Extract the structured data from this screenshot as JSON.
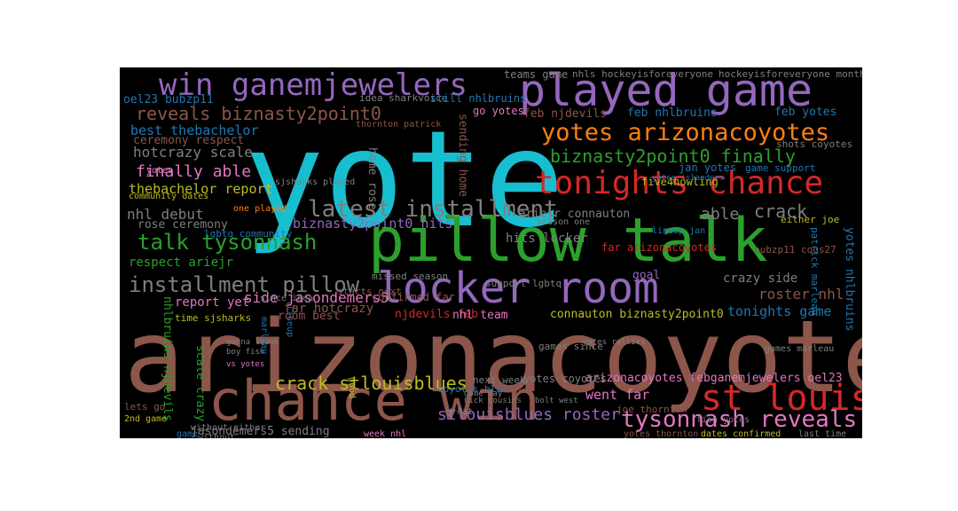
{
  "colors": {
    "cyan": "#17becf",
    "brown": "#8c564b",
    "green": "#2ca02c",
    "purple": "#9467bd",
    "red": "#d62728",
    "orange": "#ff7f0e",
    "pink": "#e377c2",
    "gray": "#7f7f7f",
    "olive": "#bcbd22",
    "blue": "#1f77b4"
  },
  "words": [
    {
      "text": "yote",
      "color": "cyan"
    },
    {
      "text": "arizonacoyotes",
      "color": "brown"
    },
    {
      "text": "pillow talk",
      "color": "green"
    },
    {
      "text": "chance win",
      "color": "brown"
    },
    {
      "text": "played game",
      "color": "purple"
    },
    {
      "text": "locker room",
      "color": "purple"
    },
    {
      "text": "win ganemjewelers",
      "color": "purple"
    },
    {
      "text": "tonights chance",
      "color": "red"
    },
    {
      "text": "yotes arizonacoyotes",
      "color": "orange"
    },
    {
      "text": "st louis",
      "color": "red"
    },
    {
      "text": "latest installment",
      "color": "gray"
    },
    {
      "text": "installment pillow",
      "color": "gray"
    },
    {
      "text": "tysonnash reveals",
      "color": "pink"
    },
    {
      "text": "talk tysonnash",
      "color": "green"
    },
    {
      "text": "reveals biznasty2point0",
      "color": "brown"
    },
    {
      "text": "biznasty2point0 finally",
      "color": "green"
    },
    {
      "text": "crack stlouisblues",
      "color": "olive"
    },
    {
      "text": "stlouisblues roster",
      "color": "purple"
    },
    {
      "text": "finally able",
      "color": "pink"
    },
    {
      "text": "crack",
      "color": "gray"
    },
    {
      "text": "hotcrazy scale",
      "color": "gray"
    },
    {
      "text": "best thebachelor",
      "color": "blue"
    },
    {
      "text": "thebachelor report",
      "color": "olive"
    },
    {
      "text": "ceremony respect",
      "color": "brown"
    },
    {
      "text": "nhl debut",
      "color": "gray"
    },
    {
      "text": "rose ceremony",
      "color": "gray"
    },
    {
      "text": "oel23 bubzp11",
      "color": "blue"
    },
    {
      "text": "tonights game",
      "color": "blue"
    },
    {
      "text": "roster nhl",
      "color": "brown"
    },
    {
      "text": "crazy side",
      "color": "gray"
    },
    {
      "text": "side jasondemers5",
      "color": "pink"
    },
    {
      "text": "respect ariejr",
      "color": "green"
    },
    {
      "text": "report yet",
      "color": "pink"
    },
    {
      "text": "far hotcrazy",
      "color": "brown"
    },
    {
      "text": "room best",
      "color": "brown"
    },
    {
      "text": "njdevils feb",
      "color": "red"
    },
    {
      "text": "nhl team",
      "color": "pink"
    },
    {
      "text": "connauton biznasty2point0",
      "color": "olive"
    },
    {
      "text": "biznasty2point0 hits",
      "color": "purple"
    },
    {
      "text": "hits locker",
      "color": "gray"
    },
    {
      "text": "ariejr connauton",
      "color": "gray"
    },
    {
      "text": "able",
      "color": "gray"
    },
    {
      "text": "feb njdevils",
      "color": "brown"
    },
    {
      "text": "feb nhlbruins",
      "color": "blue"
    },
    {
      "text": "feb yotes",
      "color": "blue"
    },
    {
      "text": "go yotes",
      "color": "pink"
    },
    {
      "text": "jan yotes",
      "color": "blue"
    },
    {
      "text": "five4howling",
      "color": "olive"
    },
    {
      "text": "arizonacoyotes febganemjewelers oel23",
      "color": "pink"
    },
    {
      "text": "went far",
      "color": "pink"
    },
    {
      "text": "jasondemers5 sending",
      "color": "gray"
    },
    {
      "text": "nhlbruins njdevils",
      "color": "green"
    },
    {
      "text": "scale crazy",
      "color": "green"
    },
    {
      "text": "yotes nhlbruins",
      "color": "blue"
    },
    {
      "text": "sending home",
      "color": "brown"
    },
    {
      "text": "home rose",
      "color": "gray"
    },
    {
      "text": "yotes coyotes",
      "color": "gray"
    },
    {
      "text": "next week",
      "color": "gray"
    },
    {
      "text": "goal",
      "color": "purple"
    },
    {
      "text": "teams game",
      "color": "gray"
    },
    {
      "text": "nhls hockeyisforeveryone",
      "color": "gray"
    },
    {
      "text": "hockeyisforeveryone month",
      "color": "gray"
    },
    {
      "text": "idea sharkvoice",
      "color": "gray"
    },
    {
      "text": "still nhlbruins",
      "color": "blue"
    },
    {
      "text": "thornton patrick",
      "color": "brown"
    },
    {
      "text": "game support",
      "color": "blue"
    },
    {
      "text": "shots coyotes",
      "color": "gray"
    },
    {
      "text": "far arizonacoyotes",
      "color": "red"
    },
    {
      "text": "lineup jan",
      "color": "blue"
    },
    {
      "text": "confirmed far",
      "color": "brown"
    },
    {
      "text": "support lgbtq",
      "color": "gray"
    },
    {
      "text": "lgbtq community",
      "color": "blue"
    },
    {
      "text": "community dates",
      "color": "olive"
    },
    {
      "text": "starts next",
      "color": "brown"
    },
    {
      "text": "time sjsharks",
      "color": "olive"
    },
    {
      "text": "games since",
      "color": "gray"
    },
    {
      "text": "coyotes blue",
      "color": "blue"
    },
    {
      "text": "joe thornton",
      "color": "brown"
    },
    {
      "text": "fish yotes",
      "color": "gray"
    },
    {
      "text": "yotes thornton",
      "color": "brown"
    },
    {
      "text": "dates confirmed",
      "color": "olive"
    },
    {
      "text": "last time",
      "color": "gray"
    },
    {
      "text": "games marleau",
      "color": "gray"
    },
    {
      "text": "2nd game",
      "color": "olive"
    },
    {
      "text": "lets go",
      "color": "brown"
    },
    {
      "text": "good",
      "color": "olive"
    },
    {
      "text": "great",
      "color": "gray"
    },
    {
      "text": "week nhl",
      "color": "pink"
    },
    {
      "text": "bubzp11 cous27",
      "color": "brown"
    },
    {
      "text": "patrick marleau",
      "color": "blue"
    },
    {
      "text": "sjsharks played",
      "color": "gray"
    },
    {
      "text": "yotes islanders",
      "color": "blue"
    },
    {
      "text": "without either",
      "color": "gray"
    },
    {
      "text": "missed season",
      "color": "gray"
    },
    {
      "text": "one played",
      "color": "orange"
    },
    {
      "text": "either joe",
      "color": "olive"
    },
    {
      "text": "boy fish",
      "color": "gray"
    },
    {
      "text": "gonna leave",
      "color": "gray"
    },
    {
      "text": "vs yotes",
      "color": "pink"
    },
    {
      "text": "since idea",
      "color": "gray"
    },
    {
      "text": "yotes rallies",
      "color": "gray"
    },
    {
      "text": "season one",
      "color": "gray"
    },
    {
      "text": "game day",
      "color": "gray"
    },
    {
      "text": "nick cousins",
      "color": "gray"
    },
    {
      "text": "bolt west",
      "color": "gray"
    },
    {
      "text": "lineup",
      "color": "blue"
    },
    {
      "text": "marleau",
      "color": "blue"
    },
    {
      "text": "yotes",
      "color": "pink"
    },
    {
      "text": "game",
      "color": "blue"
    },
    {
      "text": "without",
      "color": "gray"
    }
  ]
}
